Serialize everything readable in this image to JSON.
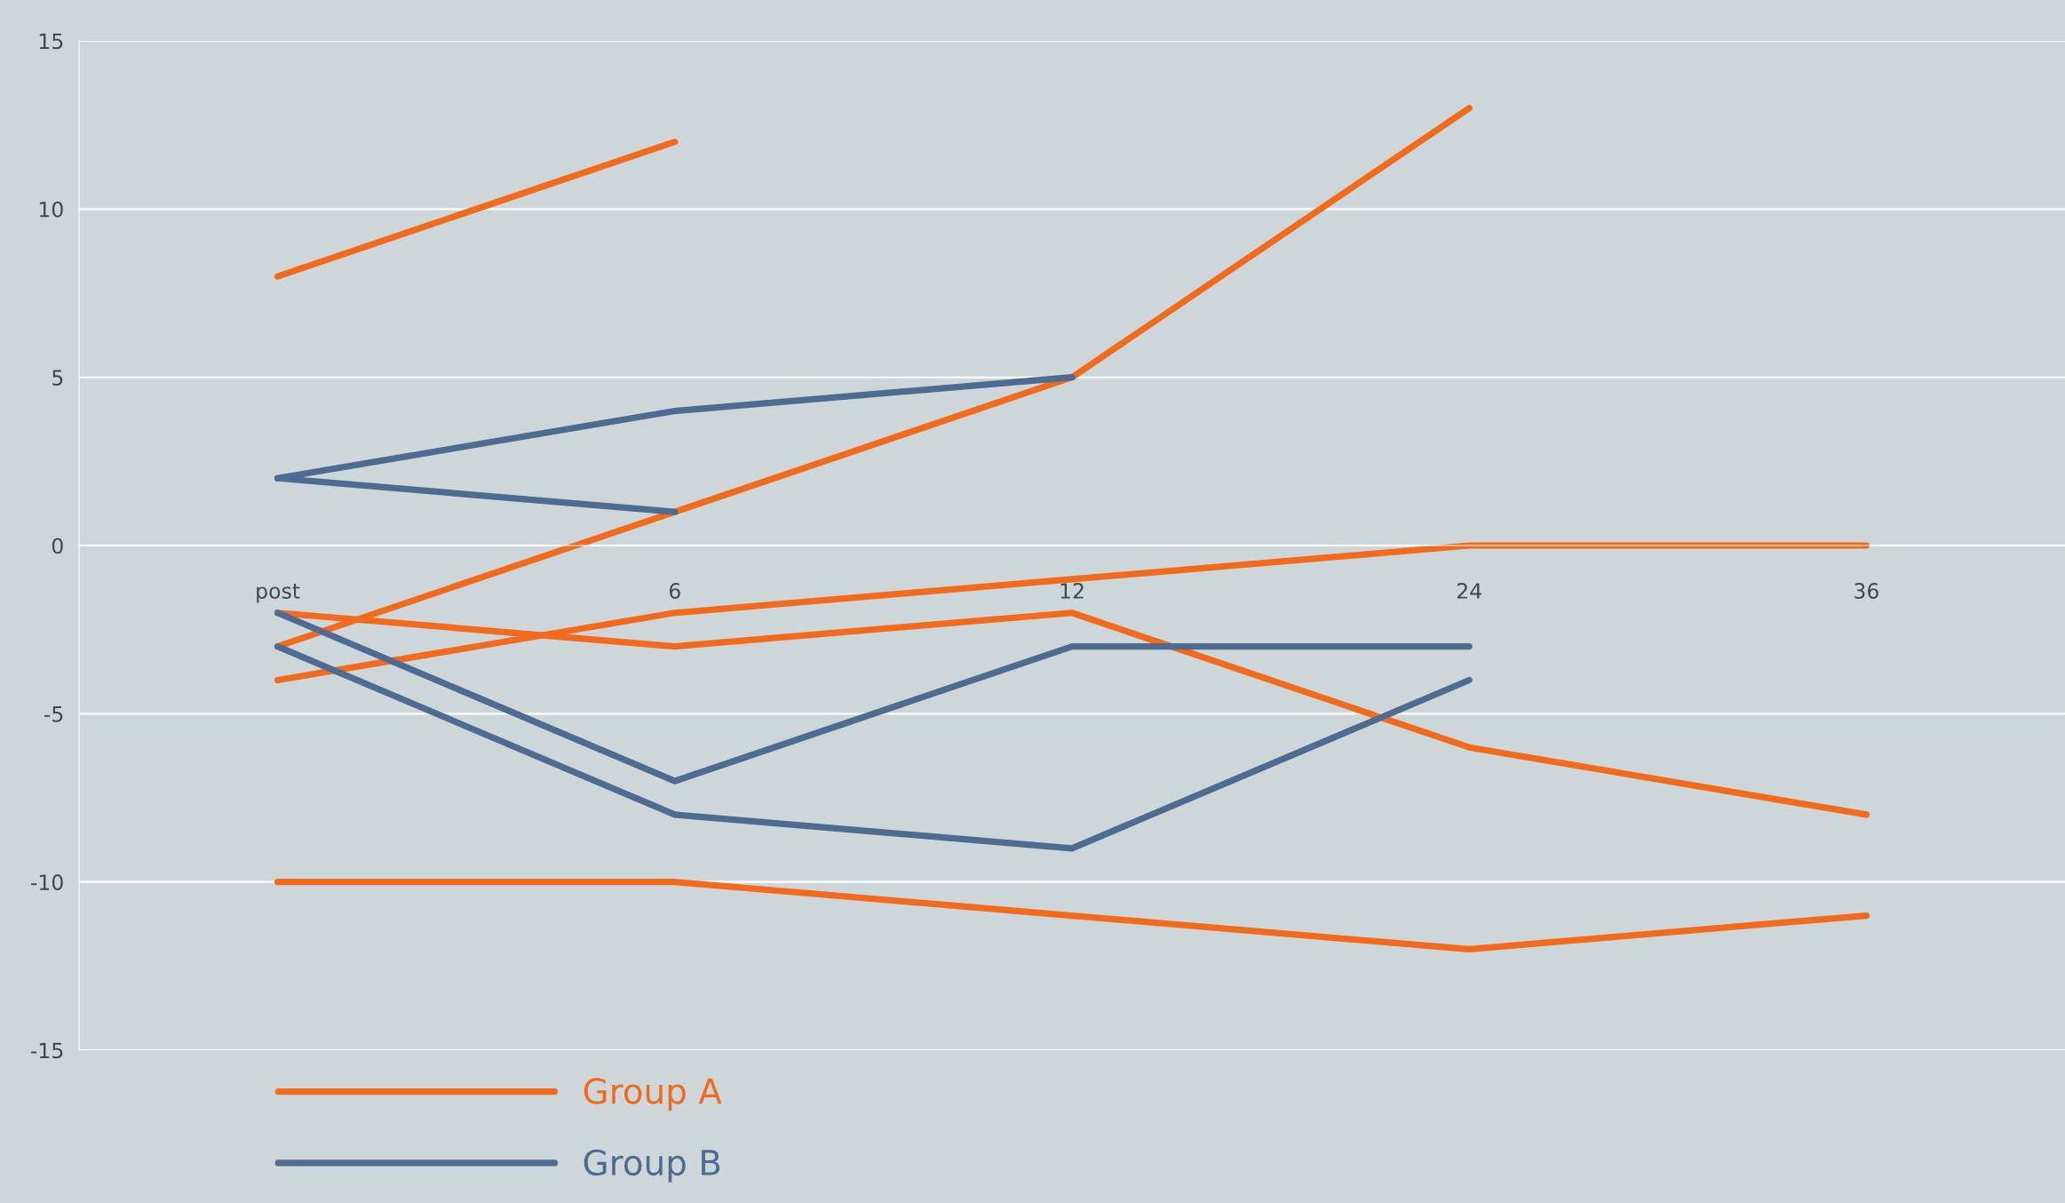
{
  "chart_data": {
    "type": "line",
    "categories": [
      "post",
      "6",
      "12",
      "24",
      "36"
    ],
    "series": [
      {
        "name": "Group A",
        "color": "#f26b1d",
        "values": [
          8,
          12,
          null,
          null,
          null
        ]
      },
      {
        "color": "#f26b1d",
        "values": [
          -3,
          1,
          5,
          13,
          null
        ]
      },
      {
        "color": "#f26b1d",
        "values": [
          -4,
          -2,
          -1,
          0,
          0
        ]
      },
      {
        "color": "#f26b1d",
        "values": [
          -2,
          -3,
          -2,
          -6,
          -8
        ]
      },
      {
        "color": "#f26b1d",
        "values": [
          -10,
          -10,
          -11,
          -12,
          -11
        ]
      },
      {
        "name": "Group B",
        "color": "#4e6b91",
        "values": [
          2,
          4,
          5,
          null,
          null
        ]
      },
      {
        "color": "#4e6b91",
        "values": [
          2,
          1,
          null,
          null,
          null
        ]
      },
      {
        "color": "#4e6b91",
        "values": [
          -2,
          -7,
          -3,
          -3,
          null
        ]
      },
      {
        "color": "#4e6b91",
        "values": [
          -3,
          -8,
          -9,
          -4,
          null
        ]
      }
    ],
    "ylim": [
      -15,
      15
    ],
    "yticks": [
      -15,
      -10,
      -5,
      0,
      5,
      10,
      15
    ],
    "grid": "y",
    "legend": "bottom left",
    "marker": "none",
    "line_style": "solid"
  }
}
